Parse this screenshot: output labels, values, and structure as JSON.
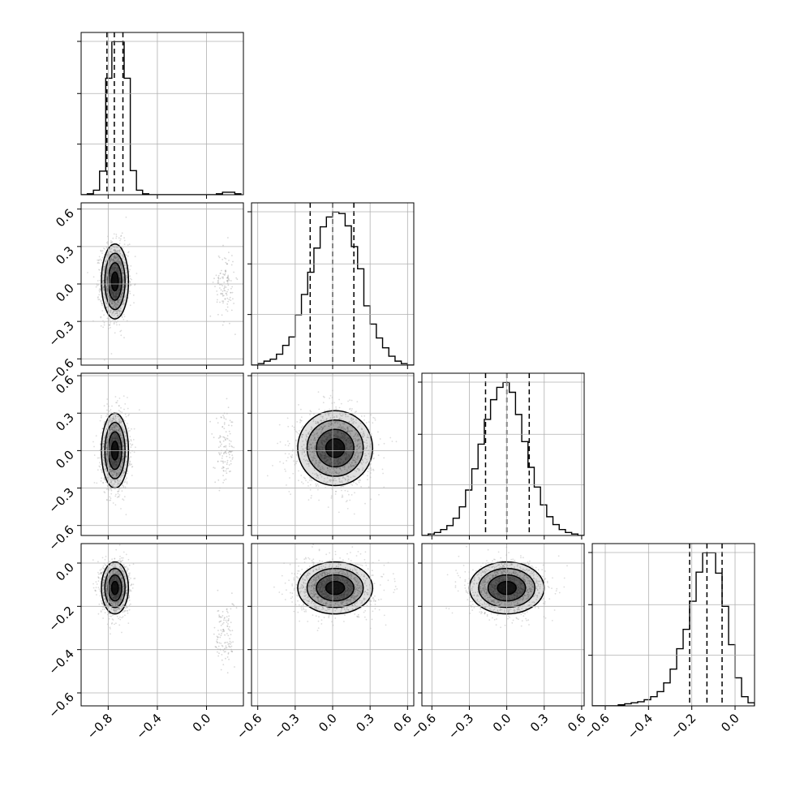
{
  "chart_data": {
    "type": "corner",
    "title": "",
    "colors": {
      "hist": "#000000",
      "grid": "#b0b0b0",
      "points": "#9a9a9a",
      "contour": "#000000"
    },
    "grid": true,
    "parameters": [
      {
        "label": "",
        "range": [
          -1.02,
          0.3
        ],
        "ticks": [
          -0.8,
          -0.4,
          0.0
        ],
        "tick_labels": [
          "−0.8",
          "−0.4",
          "0.0"
        ]
      },
      {
        "label": "",
        "range": [
          -0.65,
          0.65
        ],
        "ticks": [
          -0.6,
          -0.3,
          0.0,
          0.3,
          0.6
        ],
        "tick_labels": [
          "−0.6",
          "−0.3",
          "0.0",
          "0.3",
          "0.6"
        ]
      },
      {
        "label": "",
        "range": [
          -0.68,
          0.62
        ],
        "ticks": [
          -0.6,
          -0.3,
          0.0,
          0.3,
          0.6
        ],
        "tick_labels": [
          "−0.6",
          "−0.3",
          "0.0",
          "0.3",
          "0.6"
        ]
      },
      {
        "label": "",
        "range": [
          -0.66,
          0.09
        ],
        "ticks": [
          -0.6,
          -0.4,
          -0.2,
          0.0
        ],
        "tick_labels": [
          "−0.6",
          "−0.4",
          "−0.2",
          "0.0"
        ]
      }
    ],
    "histograms": [
      {
        "param": 0,
        "bin_edges": [
          -1.02,
          -0.97,
          -0.92,
          -0.87,
          -0.82,
          -0.77,
          -0.72,
          -0.67,
          -0.62,
          -0.57,
          -0.52,
          -0.47,
          -0.42,
          -0.37,
          -0.32,
          -0.27,
          -0.22,
          -0.17,
          -0.12,
          -0.07,
          -0.02,
          0.03,
          0.08,
          0.13,
          0.18,
          0.23,
          0.28
        ],
        "counts": [
          0,
          2,
          9,
          47,
          232,
          305,
          305,
          232,
          48,
          9,
          2,
          0,
          0,
          0,
          0,
          0,
          0,
          0,
          0,
          0,
          0,
          0,
          2,
          5,
          5,
          2
        ],
        "quantiles": [
          -0.81,
          -0.75,
          -0.68
        ]
      },
      {
        "param": 1,
        "bin_edges": [
          -0.65,
          -0.6,
          -0.55,
          -0.5,
          -0.45,
          -0.4,
          -0.35,
          -0.3,
          -0.25,
          -0.2,
          -0.15,
          -0.1,
          -0.05,
          0.0,
          0.05,
          0.1,
          0.15,
          0.2,
          0.25,
          0.3,
          0.35,
          0.4,
          0.45,
          0.5,
          0.55,
          0.6,
          0.65
        ],
        "counts": [
          0,
          3,
          8,
          12,
          22,
          40,
          57,
          102,
          143,
          188,
          237,
          280,
          300,
          310,
          307,
          282,
          240,
          195,
          120,
          83,
          55,
          35,
          18,
          8,
          3,
          0
        ],
        "quantiles": [
          -0.18,
          0.0,
          0.17
        ]
      },
      {
        "param": 2,
        "bin_edges": [
          -0.68,
          -0.63,
          -0.58,
          -0.53,
          -0.48,
          -0.43,
          -0.38,
          -0.33,
          -0.28,
          -0.23,
          -0.18,
          -0.13,
          -0.08,
          -0.03,
          0.02,
          0.07,
          0.12,
          0.17,
          0.22,
          0.27,
          0.32,
          0.37,
          0.42,
          0.47,
          0.52,
          0.57,
          0.62
        ],
        "counts": [
          0,
          3,
          6,
          12,
          20,
          35,
          58,
          92,
          135,
          185,
          235,
          275,
          300,
          310,
          290,
          245,
          190,
          138,
          98,
          62,
          38,
          22,
          12,
          6,
          3,
          0
        ],
        "quantiles": [
          -0.17,
          0.0,
          0.18
        ]
      },
      {
        "param": 3,
        "bin_edges": [
          -0.66,
          -0.63,
          -0.6,
          -0.57,
          -0.54,
          -0.51,
          -0.48,
          -0.45,
          -0.42,
          -0.39,
          -0.36,
          -0.33,
          -0.3,
          -0.27,
          -0.24,
          -0.21,
          -0.18,
          -0.15,
          -0.12,
          -0.09,
          -0.06,
          -0.03,
          0.0,
          0.03,
          0.06,
          0.09
        ],
        "counts": [
          0,
          0,
          0,
          0,
          2,
          4,
          6,
          8,
          12,
          18,
          28,
          45,
          72,
          112,
          150,
          205,
          262,
          300,
          300,
          260,
          195,
          120,
          55,
          18,
          6
        ],
        "quantiles": [
          -0.21,
          -0.13,
          -0.06
        ]
      }
    ],
    "pairs": [
      {
        "x_param": 0,
        "y_param": 1,
        "means": [
          -0.745,
          0.02
        ],
        "sigmas": [
          0.055,
          0.15
        ],
        "rho": 0.0,
        "minor_mode": [
          0.15,
          0.0,
          0.04,
          0.14
        ]
      },
      {
        "x_param": 0,
        "y_param": 2,
        "means": [
          -0.745,
          0.0
        ],
        "sigmas": [
          0.055,
          0.15
        ],
        "rho": 0.0,
        "minor_mode": [
          0.15,
          0.0,
          0.04,
          0.14
        ]
      },
      {
        "x_param": 1,
        "y_param": 2,
        "means": [
          0.02,
          0.02
        ],
        "sigmas": [
          0.15,
          0.15
        ],
        "rho": 0.0
      },
      {
        "x_param": 0,
        "y_param": 3,
        "means": [
          -0.745,
          -0.115
        ],
        "sigmas": [
          0.055,
          0.06
        ],
        "rho": 0.0,
        "minor_mode": [
          0.15,
          -0.33,
          0.04,
          0.08
        ]
      },
      {
        "x_param": 1,
        "y_param": 3,
        "means": [
          0.02,
          -0.115
        ],
        "sigmas": [
          0.15,
          0.06
        ],
        "rho": 0.0
      },
      {
        "x_param": 2,
        "y_param": 3,
        "means": [
          0.0,
          -0.115
        ],
        "sigmas": [
          0.15,
          0.06
        ],
        "rho": 0.0
      }
    ],
    "contour_levels_sigma": [
      0.5,
      1.0,
      1.5,
      2.0
    ]
  }
}
